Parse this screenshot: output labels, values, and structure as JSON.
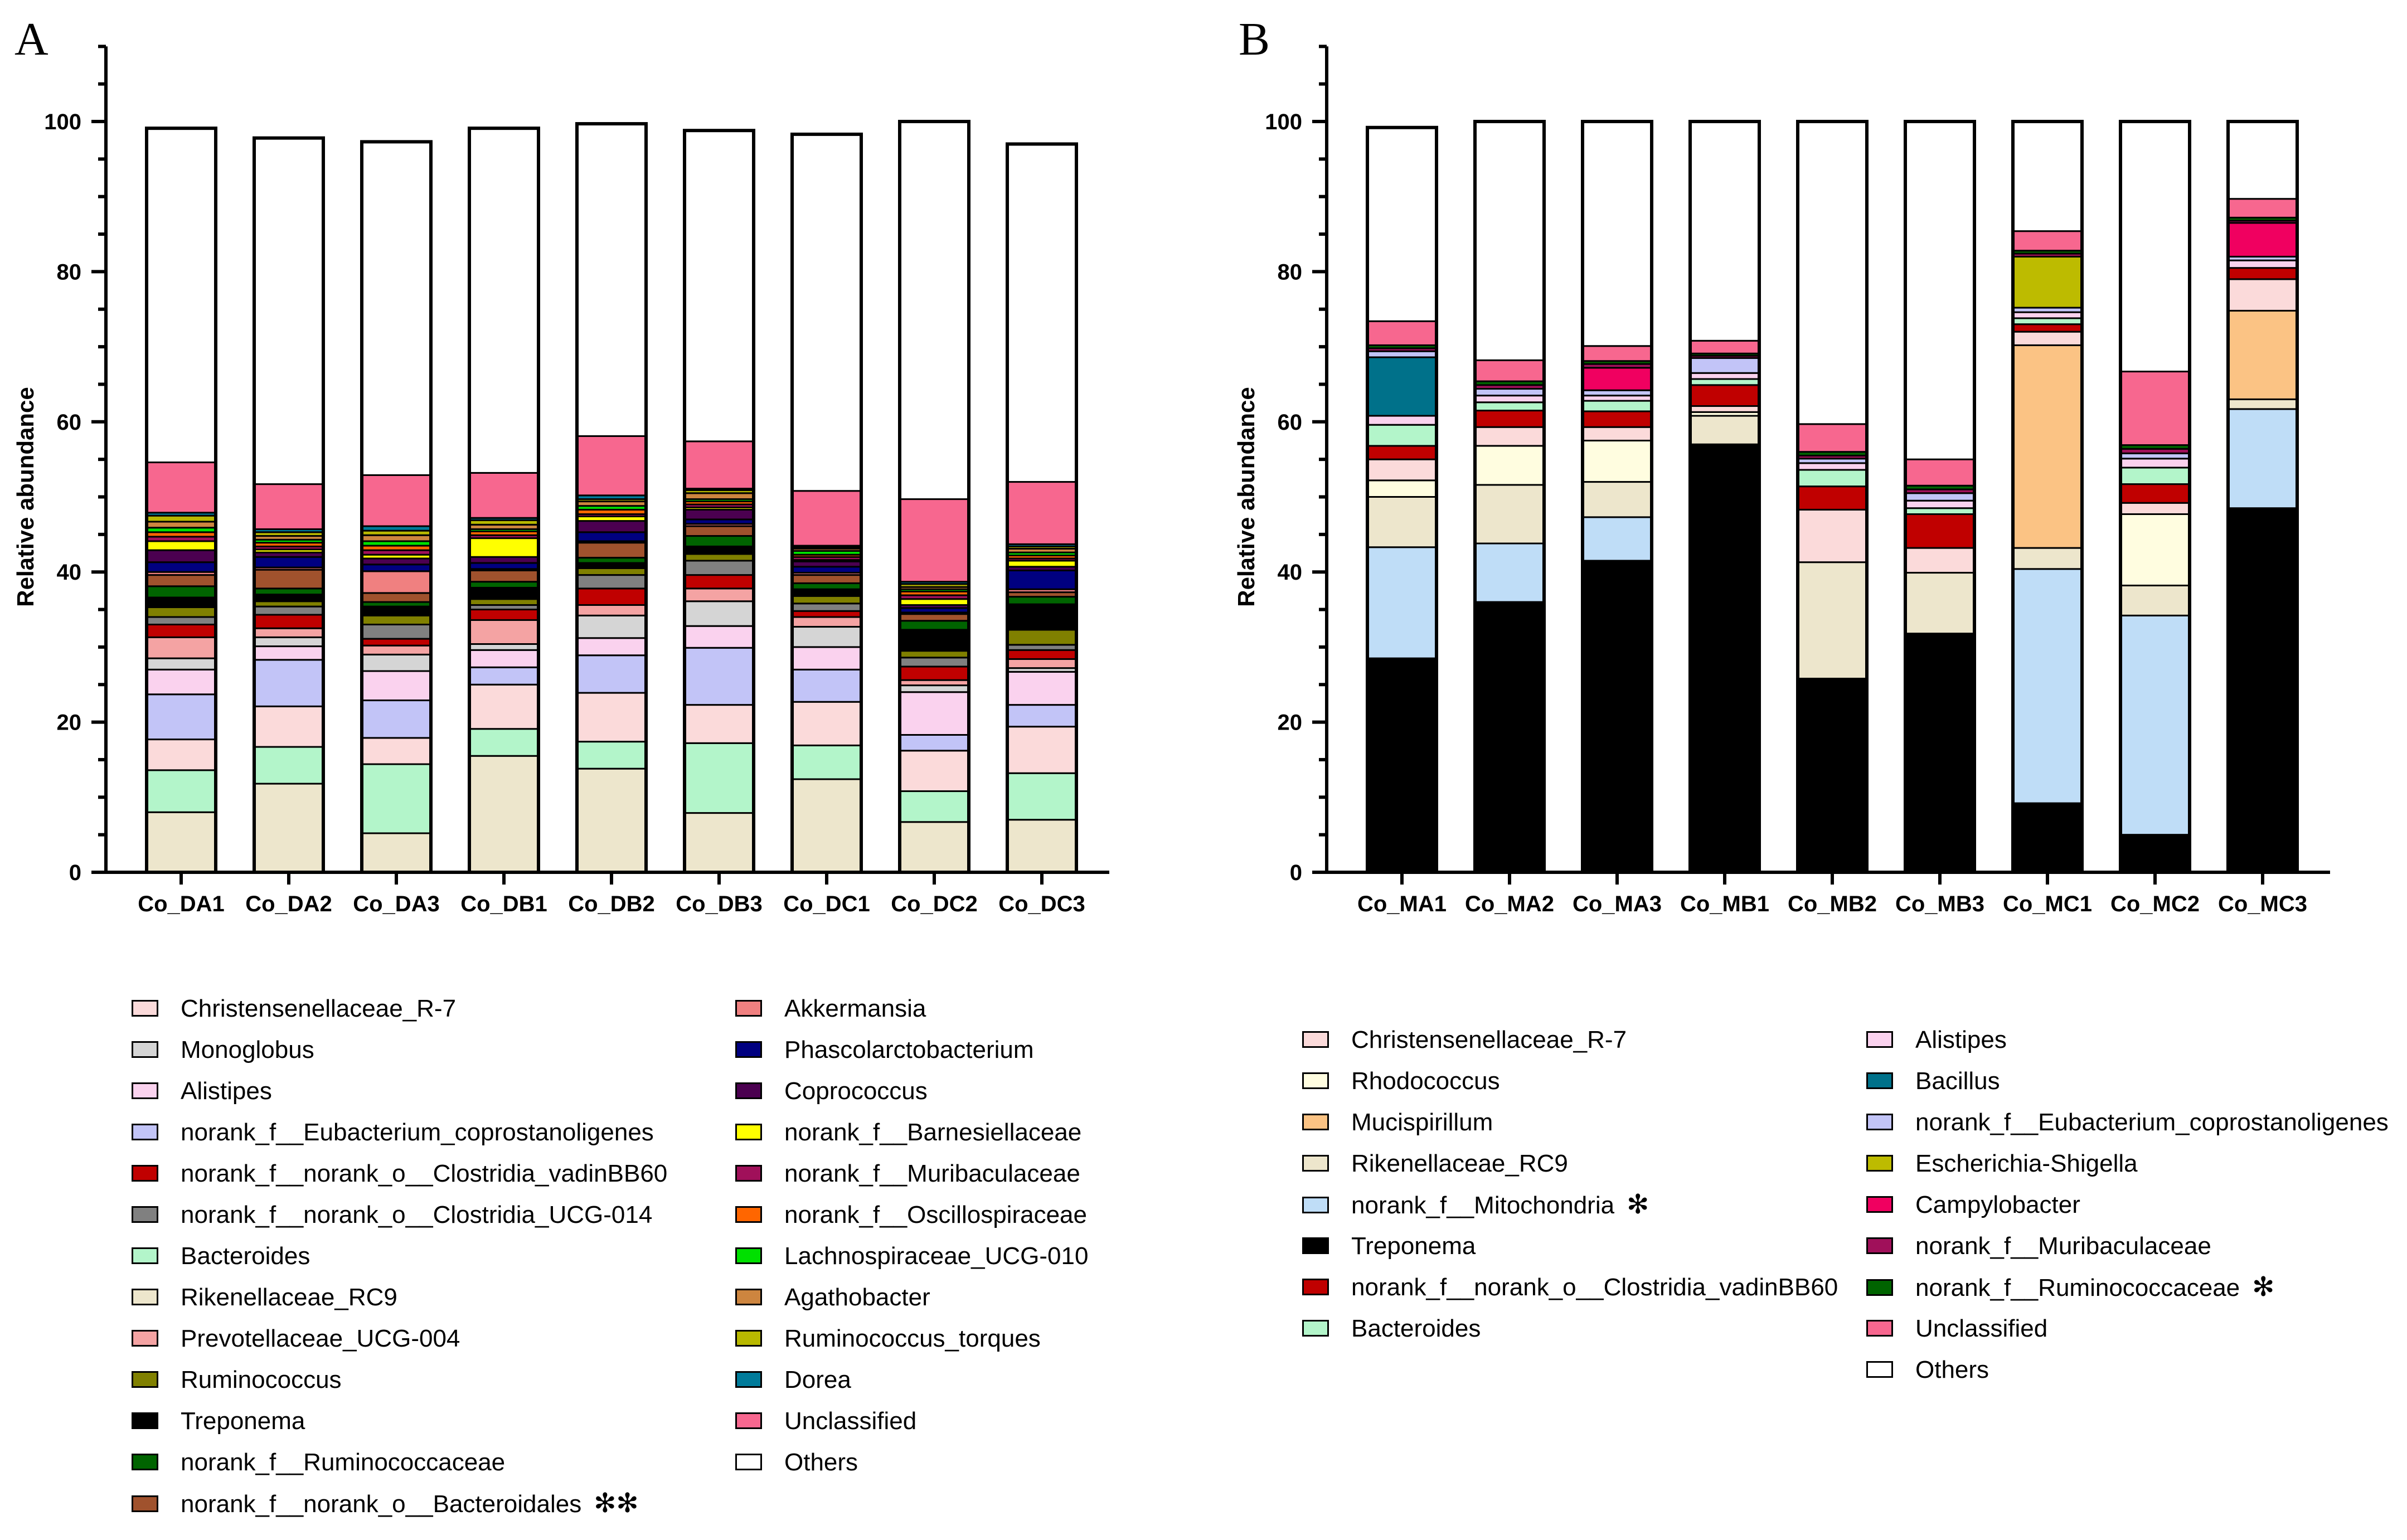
{
  "panels": {
    "a": {
      "letter": "A"
    },
    "b": {
      "letter": "B"
    }
  },
  "chart_data": [
    {
      "type": "bar",
      "stacked": true,
      "title": "",
      "xlabel": "",
      "ylabel": "Relative abundance",
      "ylim": [
        0,
        110
      ],
      "yticks": [
        "0",
        "20",
        "40",
        "60",
        "80",
        "100"
      ],
      "categories": [
        "Co_DA1",
        "Co_DA2",
        "Co_DA3",
        "Co_DB1",
        "Co_DB2",
        "Co_DB3",
        "Co_DC1",
        "Co_DC2",
        "Co_DC3"
      ],
      "series": [
        {
          "name": "Rikenellaceae_RC9",
          "color": "#EDE6CC",
          "values": [
            8,
            11.8,
            5.2,
            15.5,
            13.8,
            7.9,
            12.4,
            6.7,
            7
          ]
        },
        {
          "name": "Bacteroides",
          "color": "#B3F5CA",
          "values": [
            5.6,
            4.9,
            9.2,
            3.6,
            3.6,
            9.3,
            4.5,
            4.1,
            6.2
          ]
        },
        {
          "name": "Christensenellaceae_R-7",
          "color": "#FBDADA",
          "values": [
            4.1,
            5.4,
            3.5,
            5.9,
            6.5,
            5.1,
            5.8,
            5.4,
            6.2
          ]
        },
        {
          "name": "norank_f__Eubacterium_coprostanoligenes",
          "color": "#C2C4F7",
          "values": [
            6,
            6.2,
            5,
            2.3,
            5,
            7.6,
            4.3,
            2.1,
            2.9
          ]
        },
        {
          "name": "Alistipes",
          "color": "#FAD2EE",
          "values": [
            3.3,
            1.8,
            3.9,
            2.3,
            2.3,
            2.9,
            3,
            5.7,
            4.4
          ]
        },
        {
          "name": "Monoglobus",
          "color": "#D5D5D5",
          "values": [
            1.5,
            1.2,
            2.2,
            0.8,
            3,
            3.3,
            2.7,
            0.9,
            0.5
          ]
        },
        {
          "name": "Prevotellaceae_UCG-004",
          "color": "#F4A3A3",
          "values": [
            2.8,
            1.2,
            1.2,
            3.2,
            1.4,
            1.7,
            1.3,
            0.7,
            1.2
          ]
        },
        {
          "name": "norank_f__norank_o__Clostridia_vadinBB60",
          "color": "#C00000",
          "values": [
            1.7,
            1.8,
            0.9,
            1.4,
            2.2,
            1.8,
            0.8,
            1.8,
            1.2
          ]
        },
        {
          "name": "norank_f__norank_o__Clostridia_UCG-014",
          "color": "#808080",
          "values": [
            1,
            1.1,
            1.9,
            0.6,
            1.8,
            1.9,
            1,
            1.2,
            0.7
          ]
        },
        {
          "name": "Ruminococcus",
          "color": "#808000",
          "values": [
            1.3,
            0.7,
            1.2,
            0.8,
            0.9,
            0.9,
            1,
            0.9,
            2
          ]
        },
        {
          "name": "Treponema",
          "color": "#000000",
          "values": [
            1.3,
            0.9,
            1.2,
            1.5,
            0.7,
            1,
            0.9,
            2.8,
            3.4
          ]
        },
        {
          "name": "norank_f__Ruminococcaceae",
          "color": "#006400",
          "values": [
            1.5,
            0.8,
            0.6,
            0.8,
            0.7,
            1.4,
            0.8,
            1.2,
            1
          ]
        },
        {
          "name": "norank_f__norank_o__Bacteroidales",
          "color": "#A0522D",
          "values": [
            1.5,
            2.5,
            1.2,
            1.5,
            2,
            1.3,
            1.1,
            0.9,
            0.6
          ]
        },
        {
          "name": "Akkermansia",
          "color": "#F08080",
          "values": [
            0.4,
            0.3,
            2.9,
            0.2,
            0.2,
            0.3,
            0.3,
            0.2,
            0.4
          ]
        },
        {
          "name": "Phascolarctobacterium",
          "color": "#000080",
          "values": [
            1.3,
            1.4,
            0.9,
            0.8,
            1.2,
            0.6,
            0.8,
            0.6,
            2.5
          ]
        },
        {
          "name": "Coprococcus",
          "color": "#4B0050",
          "values": [
            1.6,
            0.6,
            0.8,
            0.8,
            1.5,
            1.3,
            0.7,
            0.4,
            0.5
          ]
        },
        {
          "name": "norank_f__Barnesiellaceae",
          "color": "#FFFF00",
          "values": [
            1.2,
            0.4,
            0.5,
            2.5,
            0.6,
            0.3,
            0.2,
            0.8,
            0.8
          ]
        },
        {
          "name": "norank_f__Muribaculaceae",
          "color": "#A0105A",
          "values": [
            0.6,
            0.4,
            0.6,
            0.4,
            0.3,
            0.4,
            0.4,
            0.5,
            0.3
          ]
        },
        {
          "name": "norank_f__Oscillospiraceae",
          "color": "#FF6600",
          "values": [
            0.6,
            0.5,
            0.6,
            0.5,
            0.6,
            0.4,
            0.3,
            0.5,
            0.4
          ]
        },
        {
          "name": "Lachnospiraceae_UCG-010",
          "color": "#00E000",
          "values": [
            0.6,
            0.4,
            0.6,
            0.3,
            0.5,
            0.3,
            0.5,
            0.3,
            0.4
          ]
        },
        {
          "name": "Agathobacter",
          "color": "#CD853F",
          "values": [
            0.8,
            0.5,
            0.8,
            0.6,
            0.6,
            0.8,
            0.3,
            0.3,
            0.5
          ]
        },
        {
          "name": "Ruminococcus_torques",
          "color": "#B8B800",
          "values": [
            0.8,
            0.5,
            0.6,
            0.6,
            0.3,
            0.4,
            0.2,
            0.4,
            0.3
          ]
        },
        {
          "name": "Dorea",
          "color": "#007B9A",
          "values": [
            0.4,
            0.4,
            0.6,
            0.3,
            0.5,
            0.2,
            0.2,
            0.3,
            0.3
          ]
        },
        {
          "name": "Unclassified",
          "color": "#F7678F",
          "values": [
            6.7,
            6,
            6.8,
            6,
            7.9,
            6.3,
            7.3,
            11,
            8.3
          ]
        },
        {
          "name": "Others",
          "color": "#FFFFFF",
          "values": [
            44.5,
            46.1,
            44.4,
            45.9,
            41.6,
            41.4,
            47.5,
            50.3,
            45
          ]
        }
      ],
      "legend": {
        "placement": "below",
        "columns": [
          [
            {
              "label": "Christensenellaceae_R-7",
              "color": "#FBDADA",
              "mark": ""
            },
            {
              "label": "Monoglobus",
              "color": "#D5D5D5",
              "mark": ""
            },
            {
              "label": "Alistipes",
              "color": "#FAD2EE",
              "mark": ""
            },
            {
              "label": "norank_f__Eubacterium_coprostanoligenes",
              "color": "#C2C4F7",
              "mark": ""
            },
            {
              "label": "norank_f__norank_o__Clostridia_vadinBB60",
              "color": "#C00000",
              "mark": ""
            },
            {
              "label": "norank_f__norank_o__Clostridia_UCG-014",
              "color": "#808080",
              "mark": ""
            },
            {
              "label": "Bacteroides",
              "color": "#B3F5CA",
              "mark": ""
            },
            {
              "label": "Rikenellaceae_RC9",
              "color": "#EDE6CC",
              "mark": ""
            },
            {
              "label": "Prevotellaceae_UCG-004",
              "color": "#F4A3A3",
              "mark": ""
            },
            {
              "label": "Ruminococcus",
              "color": "#808000",
              "mark": ""
            },
            {
              "label": "Treponema",
              "color": "#000000",
              "mark": ""
            },
            {
              "label": "norank_f__Ruminococcaceae",
              "color": "#006400",
              "mark": ""
            },
            {
              "label": "norank_f__norank_o__Bacteroidales",
              "color": "#A0522D",
              "mark": "✻✻"
            }
          ],
          [
            {
              "label": "Akkermansia",
              "color": "#F08080",
              "mark": ""
            },
            {
              "label": "Phascolarctobacterium",
              "color": "#000080",
              "mark": ""
            },
            {
              "label": "Coprococcus",
              "color": "#4B0050",
              "mark": ""
            },
            {
              "label": "norank_f__Barnesiellaceae",
              "color": "#FFFF00",
              "mark": ""
            },
            {
              "label": "norank_f__Muribaculaceae",
              "color": "#A0105A",
              "mark": ""
            },
            {
              "label": "norank_f__Oscillospiraceae",
              "color": "#FF6600",
              "mark": ""
            },
            {
              "label": "Lachnospiraceae_UCG-010",
              "color": "#00E000",
              "mark": ""
            },
            {
              "label": "Agathobacter",
              "color": "#CD853F",
              "mark": ""
            },
            {
              "label": "Ruminococcus_torques",
              "color": "#B8B800",
              "mark": ""
            },
            {
              "label": "Dorea",
              "color": "#007B9A",
              "mark": ""
            },
            {
              "label": "Unclassified",
              "color": "#F7678F",
              "mark": ""
            },
            {
              "label": "Others",
              "color": "#FFFFFF",
              "mark": ""
            }
          ]
        ]
      }
    },
    {
      "type": "bar",
      "stacked": true,
      "title": "",
      "xlabel": "",
      "ylabel": "Relative abundance",
      "ylim": [
        0,
        110
      ],
      "yticks": [
        "0",
        "20",
        "40",
        "60",
        "80",
        "100"
      ],
      "categories": [
        "Co_MA1",
        "Co_MA2",
        "Co_MA3",
        "Co_MB1",
        "Co_MB2",
        "Co_MB3",
        "Co_MC1",
        "Co_MC2",
        "Co_MC3"
      ],
      "series": [
        {
          "name": "Treponema",
          "color": "#000000",
          "values": [
            28.5,
            36,
            41.5,
            57,
            25.8,
            31.8,
            9.2,
            5,
            48.5
          ]
        },
        {
          "name": "norank_f__Mitochondria",
          "color": "#BFDDF7",
          "values": [
            14.8,
            7.8,
            5.8,
            0,
            0,
            0,
            31.2,
            29.2,
            13.2
          ]
        },
        {
          "name": "Rikenellaceae_RC9",
          "color": "#EDE6CC",
          "values": [
            6.7,
            7.8,
            4.7,
            3.8,
            15.5,
            8.1,
            2.8,
            4,
            1.3
          ]
        },
        {
          "name": "Rhodococcus",
          "color": "#FFFDE0",
          "values": [
            2.2,
            5.2,
            5.5,
            0.5,
            0,
            0,
            0,
            9.5,
            0
          ]
        },
        {
          "name": "Mucispirillum",
          "color": "#FBC384",
          "values": [
            0,
            0,
            0,
            0,
            0,
            0,
            27,
            0,
            11.8
          ]
        },
        {
          "name": "Christensenellaceae_R-7",
          "color": "#FBDADA",
          "values": [
            2.8,
            2.5,
            1.8,
            0.8,
            7,
            3.3,
            1.8,
            1.5,
            4.2
          ]
        },
        {
          "name": "norank_f__norank_o__Clostridia_vadinBB60",
          "color": "#C00000",
          "values": [
            1.8,
            2.2,
            2.1,
            2.8,
            3.1,
            4.5,
            1,
            2.5,
            1.5
          ]
        },
        {
          "name": "Bacteroides",
          "color": "#B3F5CA",
          "values": [
            2.8,
            1.1,
            1.4,
            0.8,
            2.2,
            0.8,
            0.8,
            2.2,
            0
          ]
        },
        {
          "name": "Alistipes",
          "color": "#FAD2EE",
          "values": [
            1.2,
            0.9,
            0.7,
            0.8,
            0.9,
            1,
            0.8,
            1.2,
            1
          ]
        },
        {
          "name": "Bacillus",
          "color": "#00718A",
          "values": [
            7.8,
            0,
            0,
            0,
            0,
            0,
            0,
            0,
            0
          ]
        },
        {
          "name": "norank_f__Eubacterium_coprostanoligenes",
          "color": "#C2C4F7",
          "values": [
            0.8,
            0.9,
            0.7,
            2,
            0.6,
            1,
            0.6,
            0.7,
            0.5
          ]
        },
        {
          "name": "Escherichia-Shigella",
          "color": "#BDBB00",
          "values": [
            0,
            0,
            0,
            0,
            0,
            0,
            6.8,
            0,
            0
          ]
        },
        {
          "name": "Campylobacter",
          "color": "#F00060",
          "values": [
            0,
            0,
            3,
            0,
            0,
            0,
            0,
            0,
            4.5
          ]
        },
        {
          "name": "norank_f__Muribaculaceae",
          "color": "#A0105A",
          "values": [
            0.4,
            0.5,
            0.5,
            0.3,
            0.4,
            0.5,
            0.4,
            0.6,
            0.3
          ]
        },
        {
          "name": "norank_f__Ruminococcaceae",
          "color": "#006400",
          "values": [
            0.4,
            0.5,
            0.4,
            0.3,
            0.5,
            0.5,
            0.4,
            0.5,
            0.4
          ]
        },
        {
          "name": "Unclassified",
          "color": "#F7678F",
          "values": [
            3.2,
            2.8,
            2,
            1.7,
            3.7,
            3.5,
            2.6,
            9.8,
            2.5
          ]
        },
        {
          "name": "Others",
          "color": "#FFFFFF",
          "values": [
            25.8,
            31.8,
            29.9,
            29.2,
            40.3,
            45,
            14.6,
            33.3,
            10.3
          ]
        }
      ],
      "legend": {
        "placement": "below",
        "columns": [
          [
            {
              "label": "Christensenellaceae_R-7",
              "color": "#FBDADA",
              "mark": ""
            },
            {
              "label": "Rhodococcus",
              "color": "#FFFDE0",
              "mark": ""
            },
            {
              "label": "Mucispirillum",
              "color": "#FBC384",
              "mark": ""
            },
            {
              "label": "Rikenellaceae_RC9",
              "color": "#EDE6CC",
              "mark": ""
            },
            {
              "label": "norank_f__Mitochondria",
              "color": "#BFDDF7",
              "mark": "✻"
            },
            {
              "label": "Treponema",
              "color": "#000000",
              "mark": ""
            },
            {
              "label": "norank_f__norank_o__Clostridia_vadinBB60",
              "color": "#C00000",
              "mark": ""
            },
            {
              "label": "Bacteroides",
              "color": "#B3F5CA",
              "mark": ""
            }
          ],
          [
            {
              "label": "Alistipes",
              "color": "#FAD2EE",
              "mark": ""
            },
            {
              "label": "Bacillus",
              "color": "#00718A",
              "mark": ""
            },
            {
              "label": "norank_f__Eubacterium_coprostanoligenes",
              "color": "#C2C4F7",
              "mark": ""
            },
            {
              "label": "Escherichia-Shigella",
              "color": "#BDBB00",
              "mark": ""
            },
            {
              "label": "Campylobacter",
              "color": "#F00060",
              "mark": ""
            },
            {
              "label": "norank_f__Muribaculaceae",
              "color": "#A0105A",
              "mark": ""
            },
            {
              "label": "norank_f__Ruminococcaceae",
              "color": "#006400",
              "mark": "✻"
            },
            {
              "label": "Unclassified",
              "color": "#F7678F",
              "mark": ""
            },
            {
              "label": "Others",
              "color": "#FFFFFF",
              "mark": ""
            }
          ]
        ]
      }
    }
  ]
}
